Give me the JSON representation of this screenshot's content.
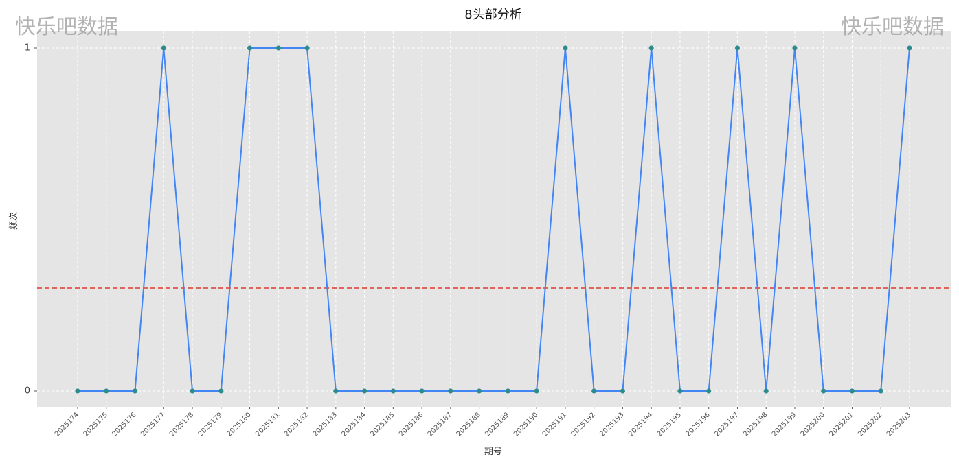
{
  "watermark": {
    "left_text": "快乐吧数据",
    "right_text": "快乐吧数据"
  },
  "chart_data": {
    "type": "line",
    "title": "8头部分析",
    "xlabel": "期号",
    "ylabel": "频次",
    "categories": [
      "2025174",
      "2025175",
      "2025176",
      "2025177",
      "2025178",
      "2025179",
      "2025180",
      "2025181",
      "2025182",
      "2025183",
      "2025184",
      "2025185",
      "2025186",
      "2025187",
      "2025188",
      "2025189",
      "2025190",
      "2025191",
      "2025192",
      "2025193",
      "2025194",
      "2025195",
      "2025196",
      "2025197",
      "2025198",
      "2025199",
      "2025200",
      "2025201",
      "2025202",
      "2025203"
    ],
    "series": [
      {
        "values": [
          0,
          0,
          0,
          1,
          0,
          0,
          1,
          1,
          1,
          0,
          0,
          0,
          0,
          0,
          0,
          0,
          0,
          1,
          0,
          0,
          1,
          0,
          0,
          1,
          0,
          1,
          0,
          0,
          0,
          1
        ],
        "color": "#4285f4",
        "marker_color": "#2e8b8b"
      }
    ],
    "reference_line": {
      "value": 0.3,
      "style": "dashed",
      "color": "#e0392b"
    },
    "yticks": [
      0,
      1
    ],
    "ylim": [
      -0.046,
      1.048
    ],
    "grid": true,
    "grid_style": "dashed",
    "background": "#e5e5e5"
  }
}
